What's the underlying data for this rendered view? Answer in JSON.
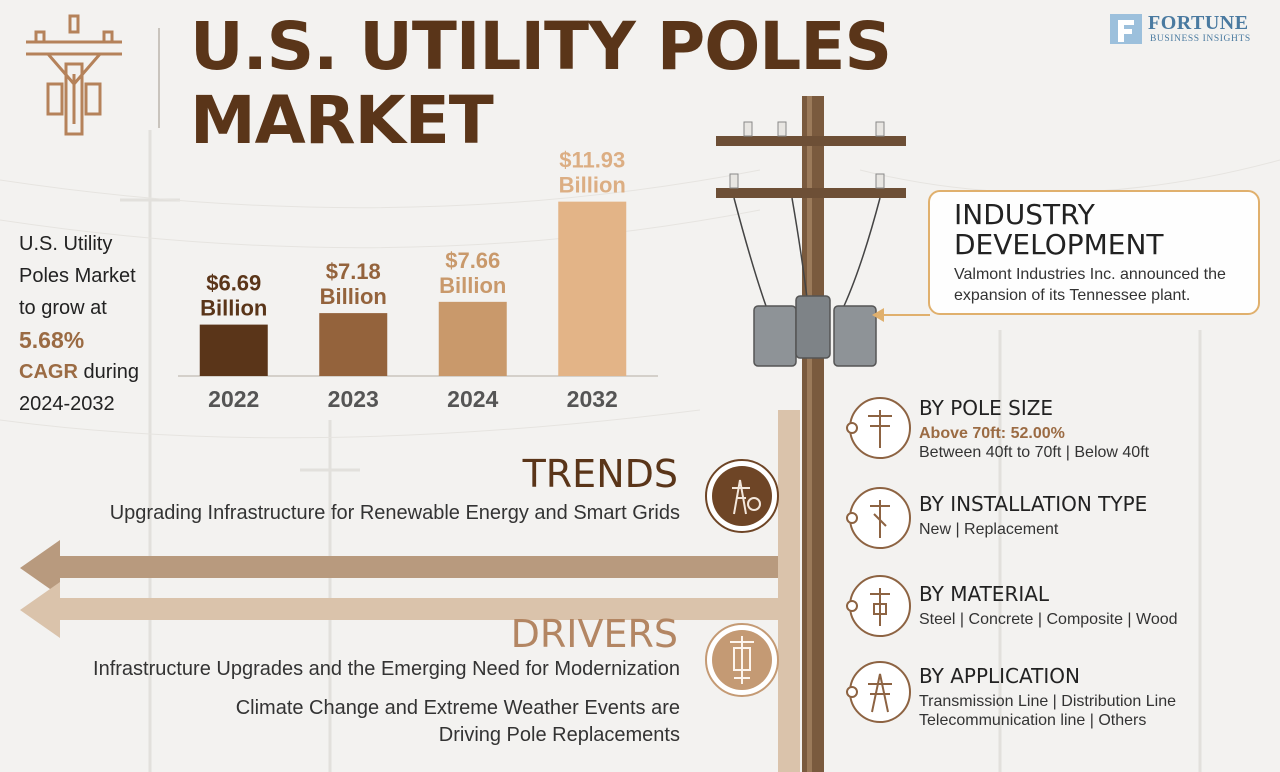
{
  "header": {
    "title_line1": "U.S. UTILITY POLES",
    "title_line2": "MARKET",
    "brand_name": "FORTUNE",
    "brand_sub": "BUSINESS INSIGHTS"
  },
  "summary": {
    "line1": "U.S. Utility",
    "line2": "Poles Market",
    "line3": "to grow at",
    "cagr_value": "5.68%",
    "cagr_label": "CAGR",
    "line5_rest": " during",
    "period": "2024-2032"
  },
  "chart_data": {
    "type": "bar",
    "categories": [
      "2022",
      "2023",
      "2024",
      "2032"
    ],
    "values": [
      6.69,
      7.18,
      7.66,
      11.93
    ],
    "value_labels": [
      [
        "$6.69",
        "Billion"
      ],
      [
        "$7.18",
        "Billion"
      ],
      [
        "$7.66",
        "Billion"
      ],
      [
        "$11.93",
        "Billion"
      ]
    ],
    "colors": [
      "#5a3519",
      "#94633c",
      "#c9996b",
      "#e3b487"
    ],
    "label_colors": [
      "#5a3519",
      "#94633c",
      "#c9996b",
      "#dcae83"
    ],
    "ylim": [
      0,
      12
    ],
    "title": "",
    "xlabel": "",
    "ylabel": ""
  },
  "industry": {
    "title_line1": "INDUSTRY",
    "title_line2": "DEVELOPMENT",
    "text": "Valmont Industries Inc. announced the expansion of its Tennessee plant."
  },
  "trends": {
    "title": "TRENDS",
    "text": "Upgrading Infrastructure for Renewable Energy and Smart Grids"
  },
  "drivers": {
    "title": "DRIVERS",
    "text1": "Infrastructure Upgrades and the Emerging Need for Modernization",
    "text2": "Climate Change and Extreme Weather Events are Driving Pole Replacements"
  },
  "segments": {
    "pole_size": {
      "title": "BY POLE SIZE",
      "highlight": "Above 70ft: 52.00%",
      "line": "Between 40ft to 70ft  |  Below 40ft"
    },
    "installation": {
      "title": "BY INSTALLATION TYPE",
      "line": "New  |  Replacement"
    },
    "material": {
      "title": "BY MATERIAL",
      "line": "Steel  |  Concrete  |  Composite  |  Wood"
    },
    "application": {
      "title": "BY APPLICATION",
      "line1": "Transmission Line  |  Distribution Line",
      "line2": "Telecommunication line  |  Others"
    }
  },
  "colors": {
    "dark_brown": "#5a3519",
    "accent_brown": "#9b6b43",
    "light_brown": "#e3b487",
    "gold": "#e0b06d"
  },
  "icons": [
    "utility-pole-logo-icon",
    "fortune-logo-icon",
    "renewable-tower-icon",
    "utility-pole-icon",
    "transformer-icon"
  ]
}
